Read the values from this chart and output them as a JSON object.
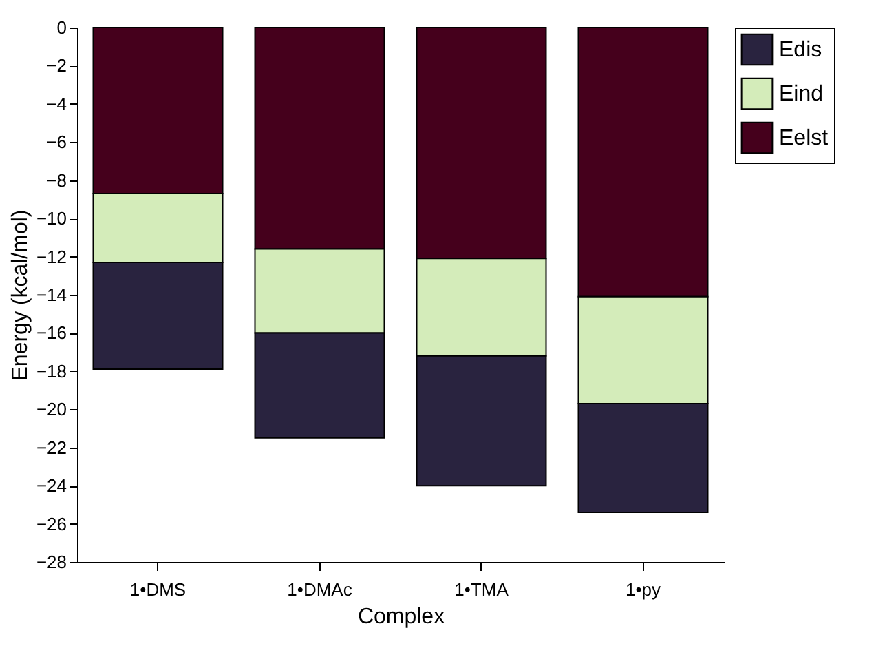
{
  "chart_data": {
    "type": "bar",
    "stacked": true,
    "xlabel": "Complex",
    "ylabel": "Energy (kcal/mol)",
    "categories": [
      "1•DMS",
      "1•DMAc",
      "1•TMA",
      "1•py"
    ],
    "series": [
      {
        "name": "Eelst",
        "color": "#45001c",
        "values": [
          -8.7,
          -11.6,
          -12.1,
          -14.1
        ]
      },
      {
        "name": "Eind",
        "color": "#d4ecba",
        "values": [
          -3.6,
          -4.4,
          -5.1,
          -5.6
        ]
      },
      {
        "name": "Edis",
        "color": "#29233f",
        "values": [
          -5.6,
          -5.5,
          -6.8,
          -5.7
        ]
      }
    ],
    "ylim": [
      -28,
      0
    ],
    "yticks": [
      -28,
      -26,
      -24,
      -22,
      -20,
      -18,
      -16,
      -14,
      -12,
      -10,
      -8,
      -6,
      -4,
      -2,
      0
    ],
    "grid": false,
    "legend": "top right"
  }
}
